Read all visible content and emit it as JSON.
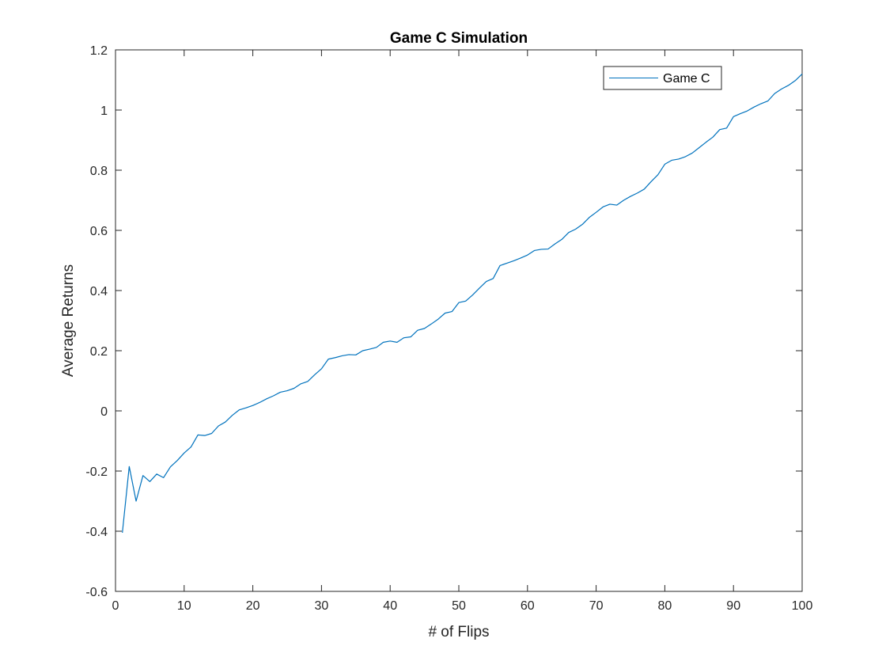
{
  "chart_data": {
    "type": "line",
    "title": "Game C Simulation",
    "xlabel": "# of Flips",
    "ylabel": "Average Returns",
    "xlim": [
      0,
      100
    ],
    "ylim": [
      -0.6,
      1.2
    ],
    "xticks": [
      0,
      10,
      20,
      30,
      40,
      50,
      60,
      70,
      80,
      90,
      100
    ],
    "xtick_labels": [
      "0",
      "10",
      "20",
      "30",
      "40",
      "50",
      "60",
      "70",
      "80",
      "90",
      "100"
    ],
    "yticks": [
      -0.6,
      -0.4,
      -0.2,
      0,
      0.2,
      0.4,
      0.6,
      0.8,
      1,
      1.2
    ],
    "ytick_labels": [
      "-0.6",
      "-0.4",
      "-0.2",
      "0",
      "0.2",
      "0.4",
      "0.6",
      "0.8",
      "1",
      "1.2"
    ],
    "grid": false,
    "legend_position": "top-right",
    "series": [
      {
        "name": "Game C",
        "color": "#0072BD",
        "x": [
          1,
          2,
          3,
          4,
          5,
          6,
          7,
          8,
          9,
          10,
          11,
          12,
          13,
          14,
          15,
          16,
          17,
          18,
          19,
          20,
          21,
          22,
          23,
          24,
          25,
          26,
          27,
          28,
          29,
          30,
          31,
          32,
          33,
          34,
          35,
          36,
          37,
          38,
          39,
          40,
          41,
          42,
          43,
          44,
          45,
          46,
          47,
          48,
          49,
          50,
          51,
          52,
          53,
          54,
          55,
          56,
          57,
          58,
          59,
          60,
          61,
          62,
          63,
          64,
          65,
          66,
          67,
          68,
          69,
          70,
          71,
          72,
          73,
          74,
          75,
          76,
          77,
          78,
          79,
          80,
          81,
          82,
          83,
          84,
          85,
          86,
          87,
          88,
          89,
          90,
          91,
          92,
          93,
          94,
          95,
          96,
          97,
          98,
          99,
          100
        ],
        "y": [
          -0.405,
          -0.185,
          -0.3,
          -0.215,
          -0.235,
          -0.21,
          -0.222,
          -0.186,
          -0.165,
          -0.14,
          -0.12,
          -0.08,
          -0.082,
          -0.075,
          -0.05,
          -0.037,
          -0.015,
          0.003,
          0.01,
          0.018,
          0.028,
          0.04,
          0.05,
          0.062,
          0.067,
          0.075,
          0.09,
          0.098,
          0.12,
          0.14,
          0.172,
          0.177,
          0.183,
          0.187,
          0.186,
          0.2,
          0.205,
          0.211,
          0.228,
          0.232,
          0.228,
          0.243,
          0.246,
          0.268,
          0.274,
          0.289,
          0.305,
          0.325,
          0.33,
          0.36,
          0.365,
          0.385,
          0.408,
          0.43,
          0.44,
          0.483,
          0.491,
          0.499,
          0.508,
          0.518,
          0.533,
          0.537,
          0.538,
          0.555,
          0.57,
          0.593,
          0.604,
          0.62,
          0.643,
          0.66,
          0.678,
          0.687,
          0.684,
          0.7,
          0.713,
          0.724,
          0.737,
          0.762,
          0.785,
          0.82,
          0.833,
          0.837,
          0.845,
          0.857,
          0.875,
          0.893,
          0.91,
          0.935,
          0.94,
          0.978,
          0.988,
          0.997,
          1.01,
          1.021,
          1.03,
          1.055,
          1.07,
          1.082,
          1.098,
          1.12
        ]
      }
    ]
  }
}
